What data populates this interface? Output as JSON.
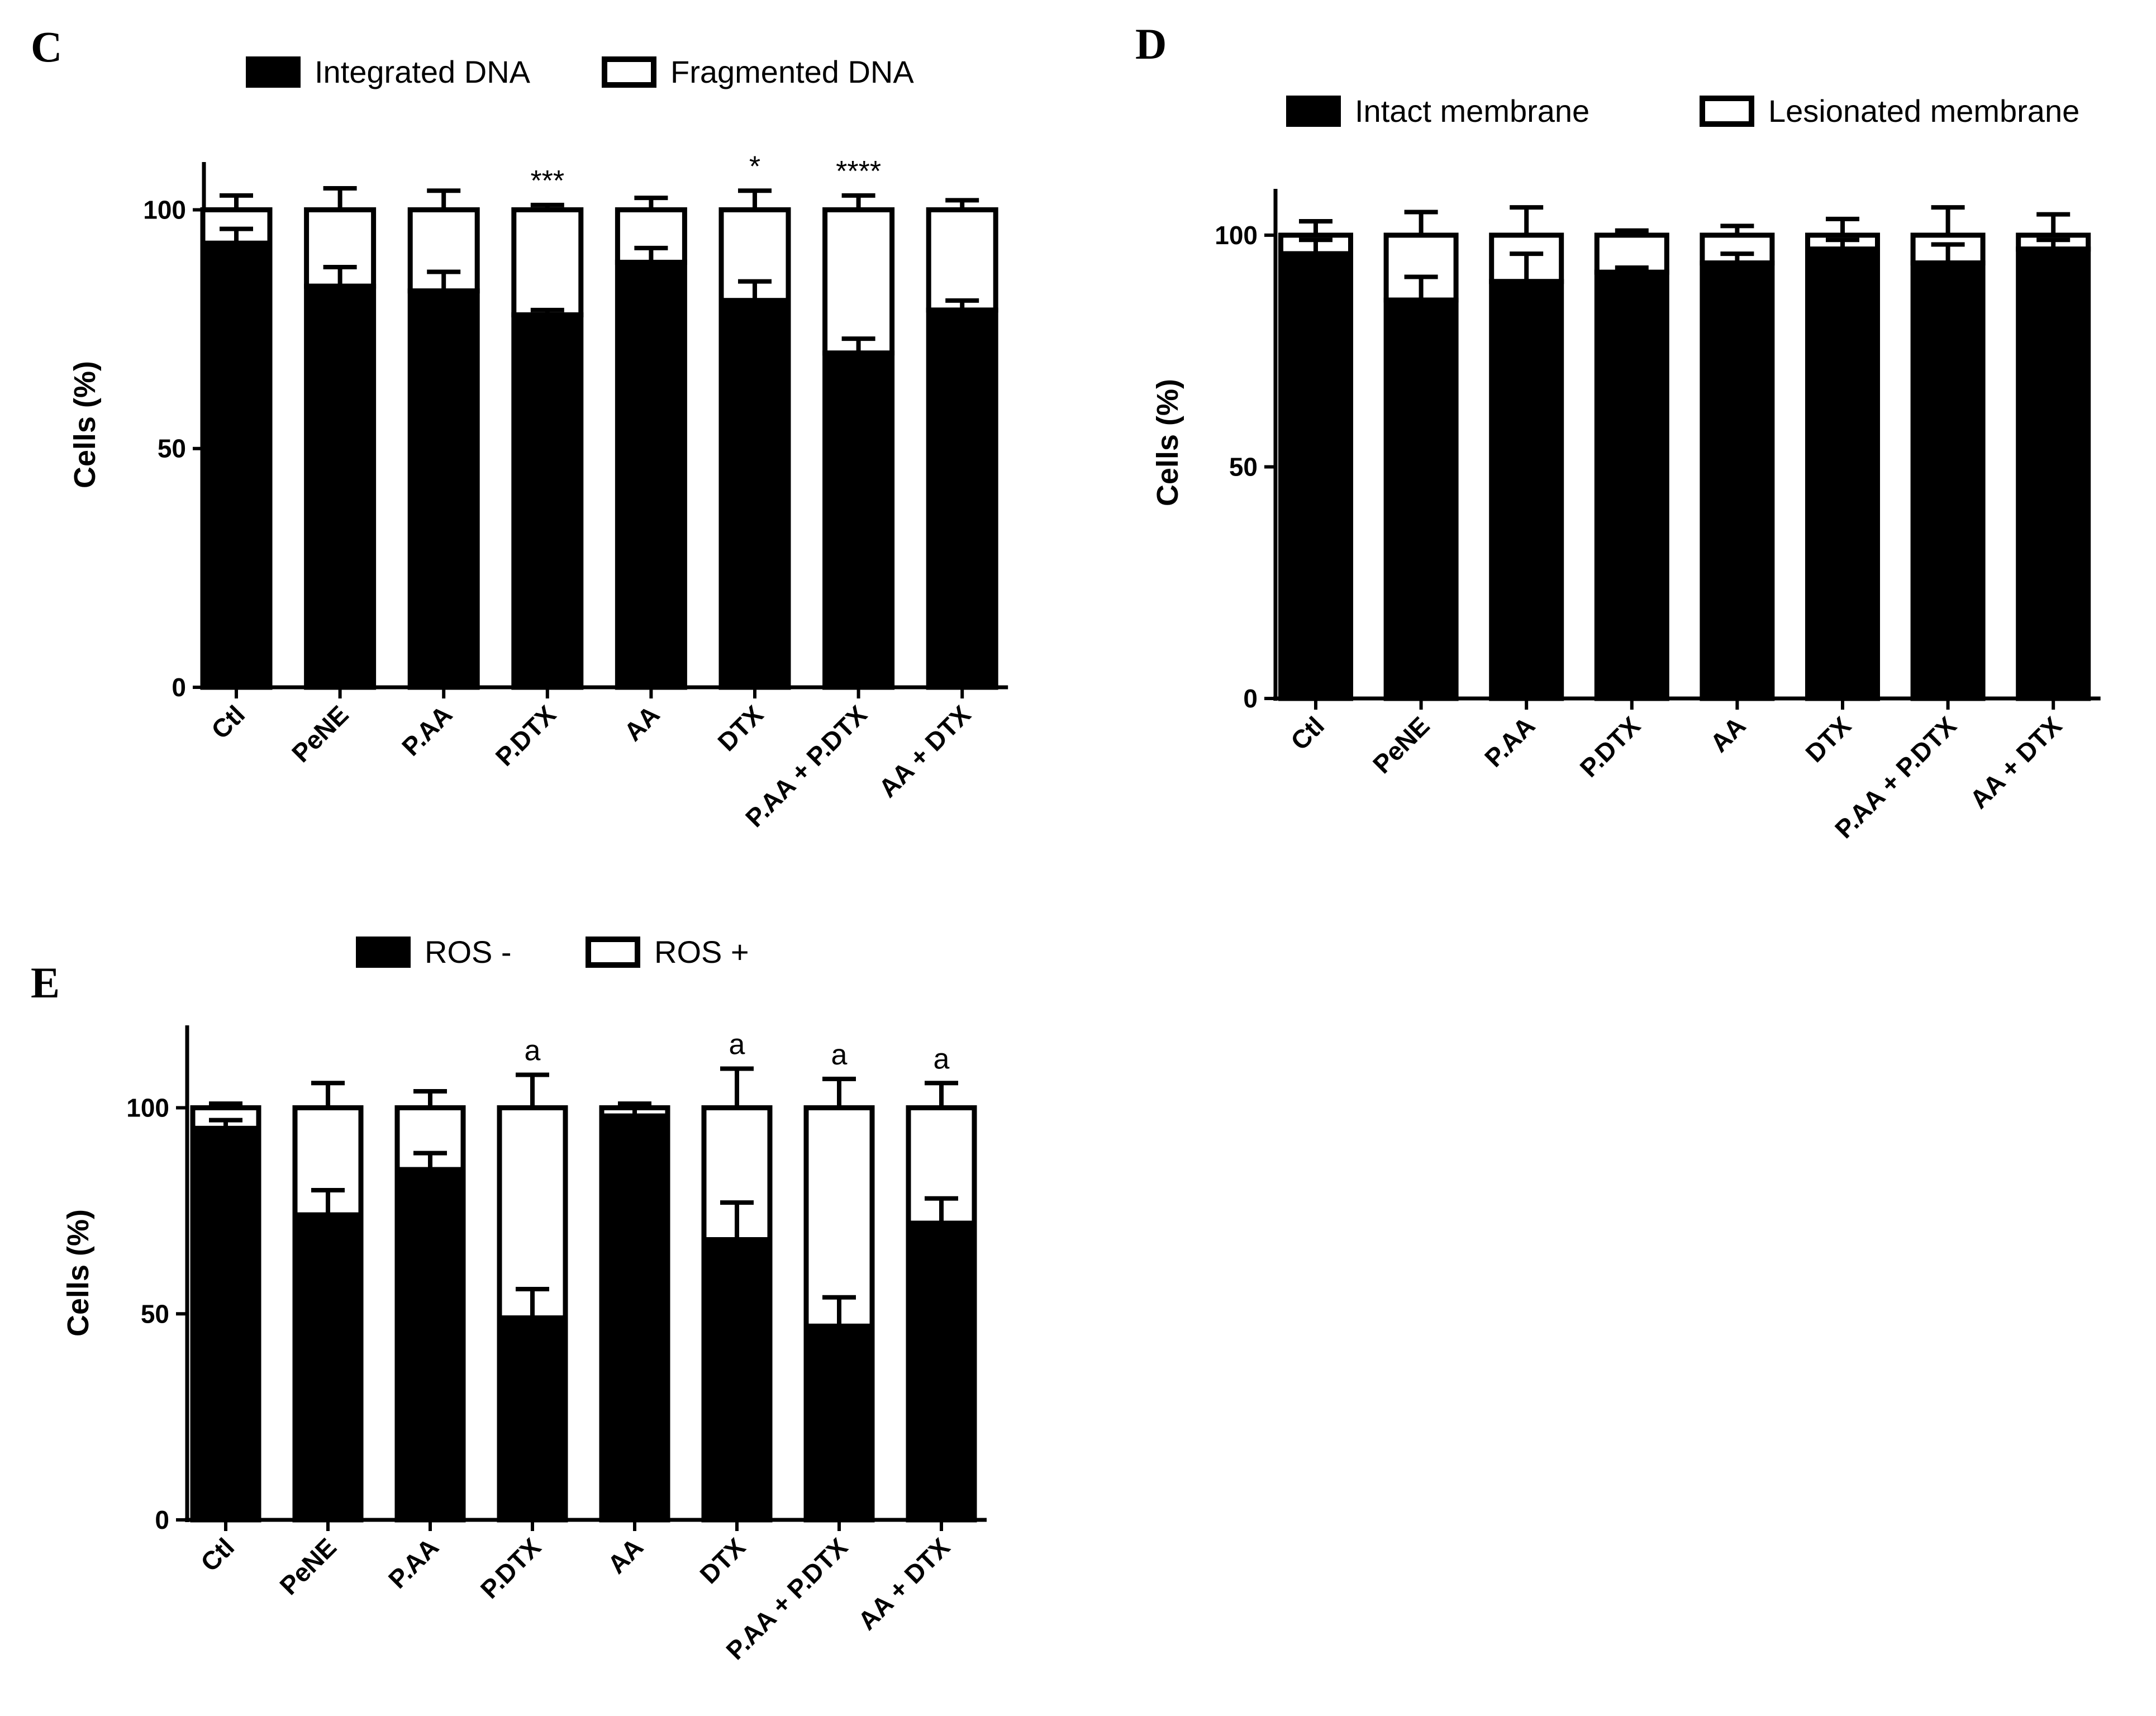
{
  "figure": {
    "background": "#ffffff",
    "foreground": "#000000"
  },
  "chart_data": [
    {
      "panel": "C",
      "type": "bar",
      "stacked": true,
      "categories": [
        "Ctl",
        "PeNE",
        "P.AA",
        "P.DTX",
        "AA",
        "DTX",
        "P.AA + P.DTX",
        "AA + DTX"
      ],
      "series": [
        {
          "name": "Integrated DNA",
          "fill": "#000000",
          "values": [
            93,
            84,
            83,
            78,
            89,
            81,
            70,
            79
          ],
          "error_up": [
            3,
            4,
            4,
            1,
            3,
            4,
            3,
            2
          ]
        },
        {
          "name": "Fragmented DNA",
          "fill": "#ffffff",
          "values": [
            7,
            16,
            17,
            22,
            11,
            19,
            30,
            21
          ]
        }
      ],
      "total_error_up": [
        3,
        4.5,
        4,
        1,
        2.5,
        4,
        3,
        2
      ],
      "annotations": [
        "",
        "",
        "",
        "***",
        "",
        "*",
        "****",
        ""
      ],
      "ylabel": "Cells (%)",
      "xlabel": "",
      "ylim": [
        0,
        110
      ],
      "yticks": [
        "0",
        "50",
        "100"
      ],
      "legend_position": "top"
    },
    {
      "panel": "D",
      "type": "bar",
      "stacked": true,
      "categories": [
        "Ctl",
        "PeNE",
        "P.AA",
        "P.DTX",
        "AA",
        "DTX",
        "P.AA + P.DTX",
        "AA + DTX"
      ],
      "series": [
        {
          "name": "Intact membrane",
          "fill": "#000000",
          "values": [
            96,
            86,
            90,
            92,
            94,
            97,
            94,
            97
          ],
          "error_up": [
            3,
            5,
            6,
            1,
            2,
            2,
            4,
            2
          ]
        },
        {
          "name": "Lesionated membrane",
          "fill": "#ffffff",
          "values": [
            4,
            14,
            10,
            8,
            6,
            3,
            6,
            3
          ]
        }
      ],
      "total_error_up": [
        3,
        5,
        6,
        1,
        2,
        3.5,
        6,
        4.5
      ],
      "annotations": [
        "",
        "",
        "",
        "",
        "",
        "",
        "",
        ""
      ],
      "ylabel": "Cells (%)",
      "xlabel": "",
      "ylim": [
        0,
        110
      ],
      "yticks": [
        "0",
        "50",
        "100"
      ],
      "legend_position": "top"
    },
    {
      "panel": "E",
      "type": "bar",
      "stacked": true,
      "categories": [
        "Ctl",
        "PeNE",
        "P.AA",
        "P.DTX",
        "AA",
        "DTX",
        "P.AA + P.DTX",
        "AA + DTX"
      ],
      "series": [
        {
          "name": "ROS -",
          "fill": "#000000",
          "values": [
            95,
            74,
            85,
            49,
            98,
            68,
            47,
            72
          ],
          "error_up": [
            2,
            6,
            4,
            7,
            2,
            9,
            7,
            6
          ]
        },
        {
          "name": "ROS +",
          "fill": "#ffffff",
          "values": [
            5,
            26,
            15,
            51,
            2,
            32,
            53,
            28
          ]
        }
      ],
      "total_error_up": [
        1,
        6,
        4,
        8,
        1,
        9.5,
        7,
        6
      ],
      "annotations": [
        "",
        "",
        "",
        "a",
        "",
        "a",
        "a",
        "a"
      ],
      "ylabel": "Cells (%)",
      "xlabel": "",
      "ylim": [
        0,
        120
      ],
      "yticks": [
        "0",
        "50",
        "100"
      ],
      "legend_position": "top"
    }
  ]
}
